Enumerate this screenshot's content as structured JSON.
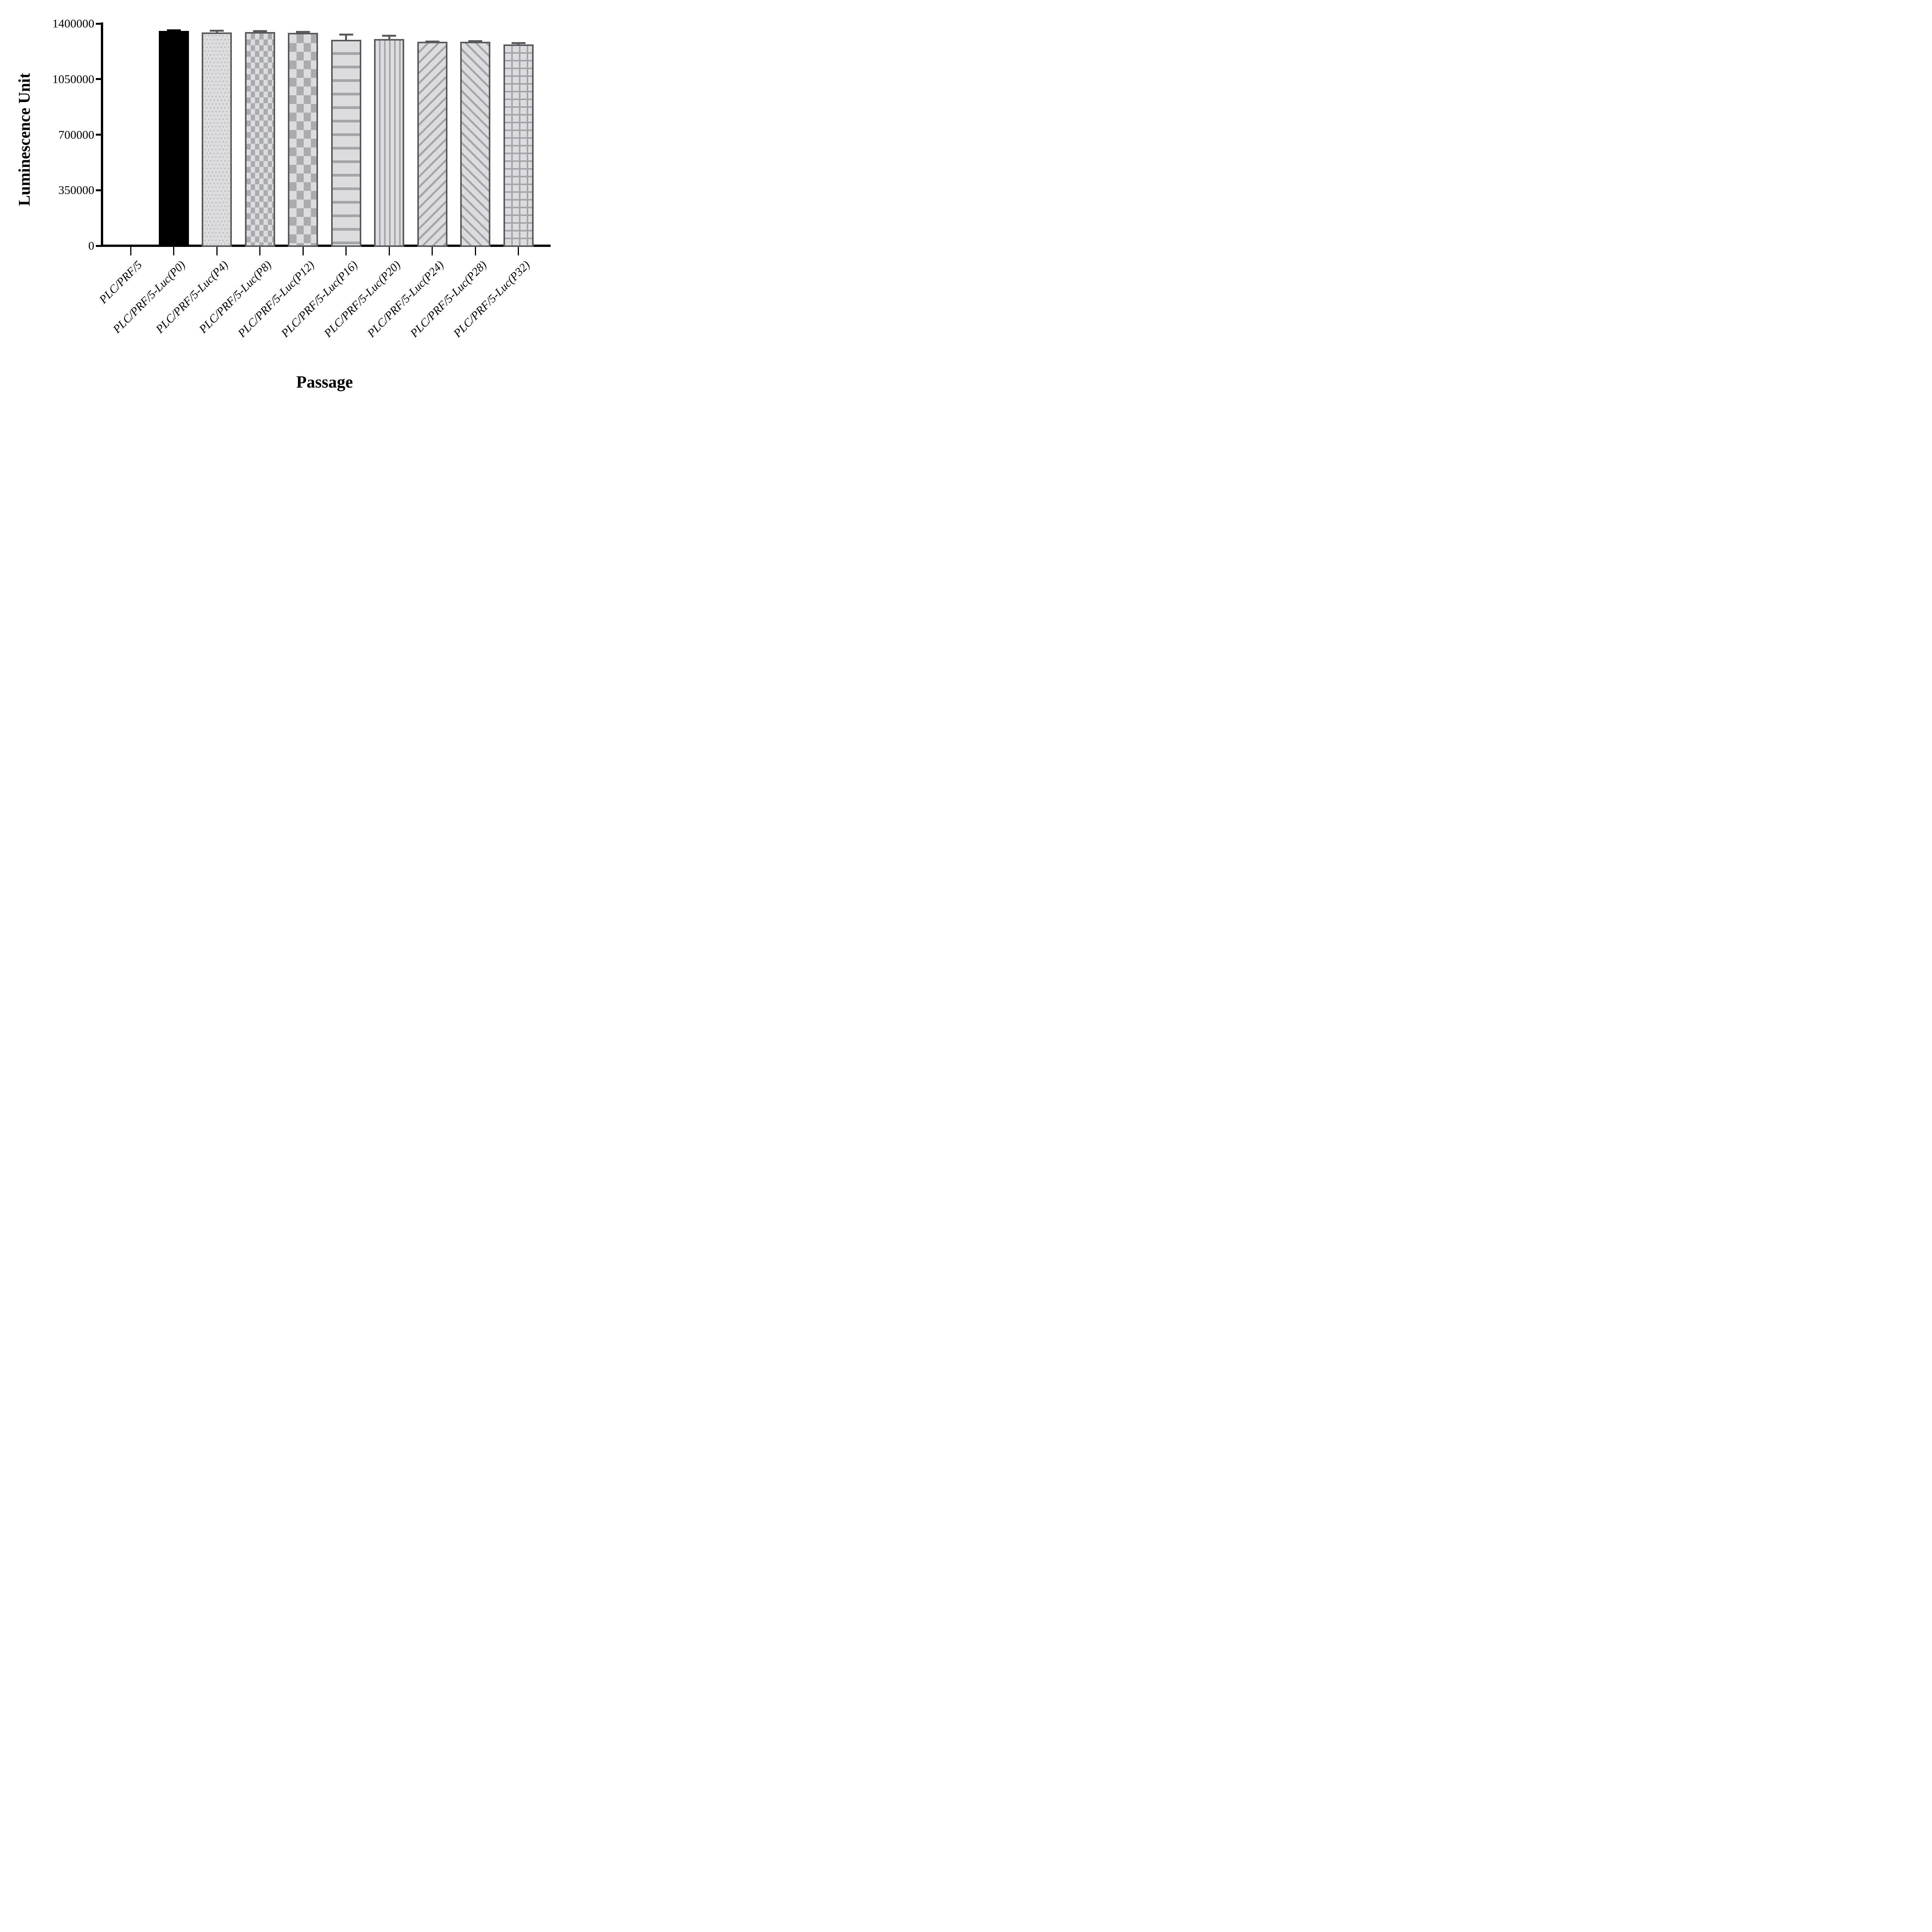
{
  "chart_data": {
    "type": "bar",
    "title": "",
    "xlabel": "Passage",
    "ylabel": "Luminescence Unit",
    "ylim": [
      0,
      1400000
    ],
    "ytick_values": [
      0,
      350000,
      700000,
      1050000,
      1400000
    ],
    "ytick_labels": [
      "0",
      "350000",
      "700000",
      "1050000",
      "1400000"
    ],
    "grid": "off",
    "legend": "none",
    "error_bars": "upper SD whiskers with caps",
    "categories": [
      "PLC/PRF/5",
      "PLC/PRF/5-Luc(P0)",
      "PLC/PRF/5-Luc(P4)",
      "PLC/PRF/5-Luc(P8)",
      "PLC/PRF/5-Luc(P12)",
      "PLC/PRF/5-Luc(P16)",
      "PLC/PRF/5-Luc(P20)",
      "PLC/PRF/5-Luc(P24)",
      "PLC/PRF/5-Luc(P28)",
      "PLC/PRF/5-Luc(P32)"
    ],
    "values": [
      0,
      1355000,
      1344000,
      1348000,
      1342000,
      1299000,
      1304000,
      1286000,
      1285000,
      1270000
    ],
    "errors": [
      0,
      8000,
      17000,
      11000,
      13000,
      39000,
      25000,
      7000,
      10000,
      14000
    ],
    "bar_styles": [
      "none",
      "solid",
      "dots",
      "checker-small",
      "checker-large",
      "hlines",
      "vlines",
      "diag-up",
      "diag-down",
      "grid"
    ],
    "colors": {
      "background": "#ffffff",
      "axis": "#000000",
      "bar_black": "#000000",
      "bar_border": "#58595b",
      "bar_fill": "#dcdcde",
      "pattern_gray": "#a4a5aa",
      "error_bar_gray": "#58595b"
    }
  }
}
